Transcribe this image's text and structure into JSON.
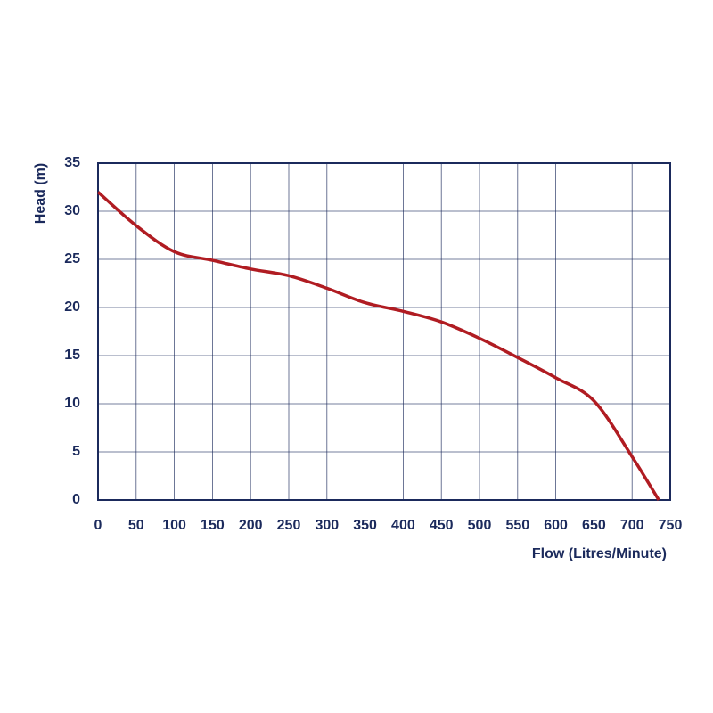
{
  "chart_data": {
    "type": "line",
    "ylabel": "Head (m)",
    "xlabel": "Flow (Litres/Minute)",
    "x": [
      0,
      50,
      100,
      150,
      200,
      250,
      300,
      350,
      400,
      450,
      500,
      550,
      600,
      650,
      700,
      735
    ],
    "values": [
      32,
      28.5,
      25.8,
      24.9,
      24,
      23.3,
      22,
      20.5,
      19.6,
      18.5,
      16.8,
      14.8,
      12.7,
      10.3,
      4.5,
      0
    ],
    "color": "#b01c22",
    "xlim": [
      0,
      750
    ],
    "xticks": [
      0,
      50,
      100,
      150,
      200,
      250,
      300,
      350,
      400,
      450,
      500,
      550,
      600,
      650,
      700,
      750
    ],
    "ylim": [
      0,
      35
    ],
    "yticks": [
      0,
      5,
      10,
      15,
      20,
      25,
      30,
      35
    ],
    "grid": true
  }
}
